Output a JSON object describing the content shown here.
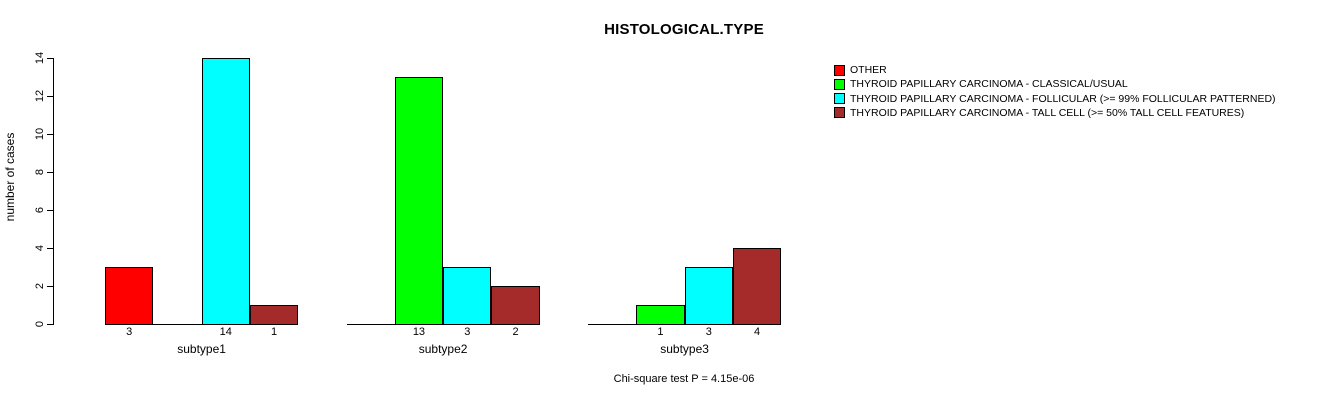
{
  "chart_data": {
    "type": "bar",
    "title": "HISTOLOGICAL.TYPE",
    "ylabel": "number of cases",
    "xlabel": "",
    "ylim": [
      0,
      14
    ],
    "yticks": [
      0,
      2,
      4,
      6,
      8,
      10,
      12,
      14
    ],
    "grid": false,
    "legend_position": "right",
    "categories": [
      "subtype1",
      "subtype2",
      "subtype3"
    ],
    "series": [
      {
        "name": "OTHER",
        "color": "#FF0000",
        "values": [
          3,
          0,
          0
        ]
      },
      {
        "name": "THYROID PAPILLARY CARCINOMA - CLASSICAL/USUAL",
        "color": "#00FF00",
        "values": [
          0,
          13,
          1
        ]
      },
      {
        "name": "THYROID PAPILLARY CARCINOMA - FOLLICULAR (>= 99% FOLLICULAR PATTERNED)",
        "color": "#00FFFF",
        "values": [
          14,
          3,
          3
        ]
      },
      {
        "name": "THYROID PAPILLARY CARCINOMA - TALL CELL (>= 50% TALL CELL FEATURES)",
        "color": "#A52A2A",
        "values": [
          1,
          2,
          4
        ]
      }
    ],
    "bar_value_labels": {
      "subtype1": [
        "3",
        "14",
        "1"
      ],
      "subtype2": [
        "13",
        "3",
        "2"
      ],
      "subtype3": [
        "1",
        "3",
        "4"
      ]
    },
    "note": "Chi-square test P = 4.15e-06"
  }
}
